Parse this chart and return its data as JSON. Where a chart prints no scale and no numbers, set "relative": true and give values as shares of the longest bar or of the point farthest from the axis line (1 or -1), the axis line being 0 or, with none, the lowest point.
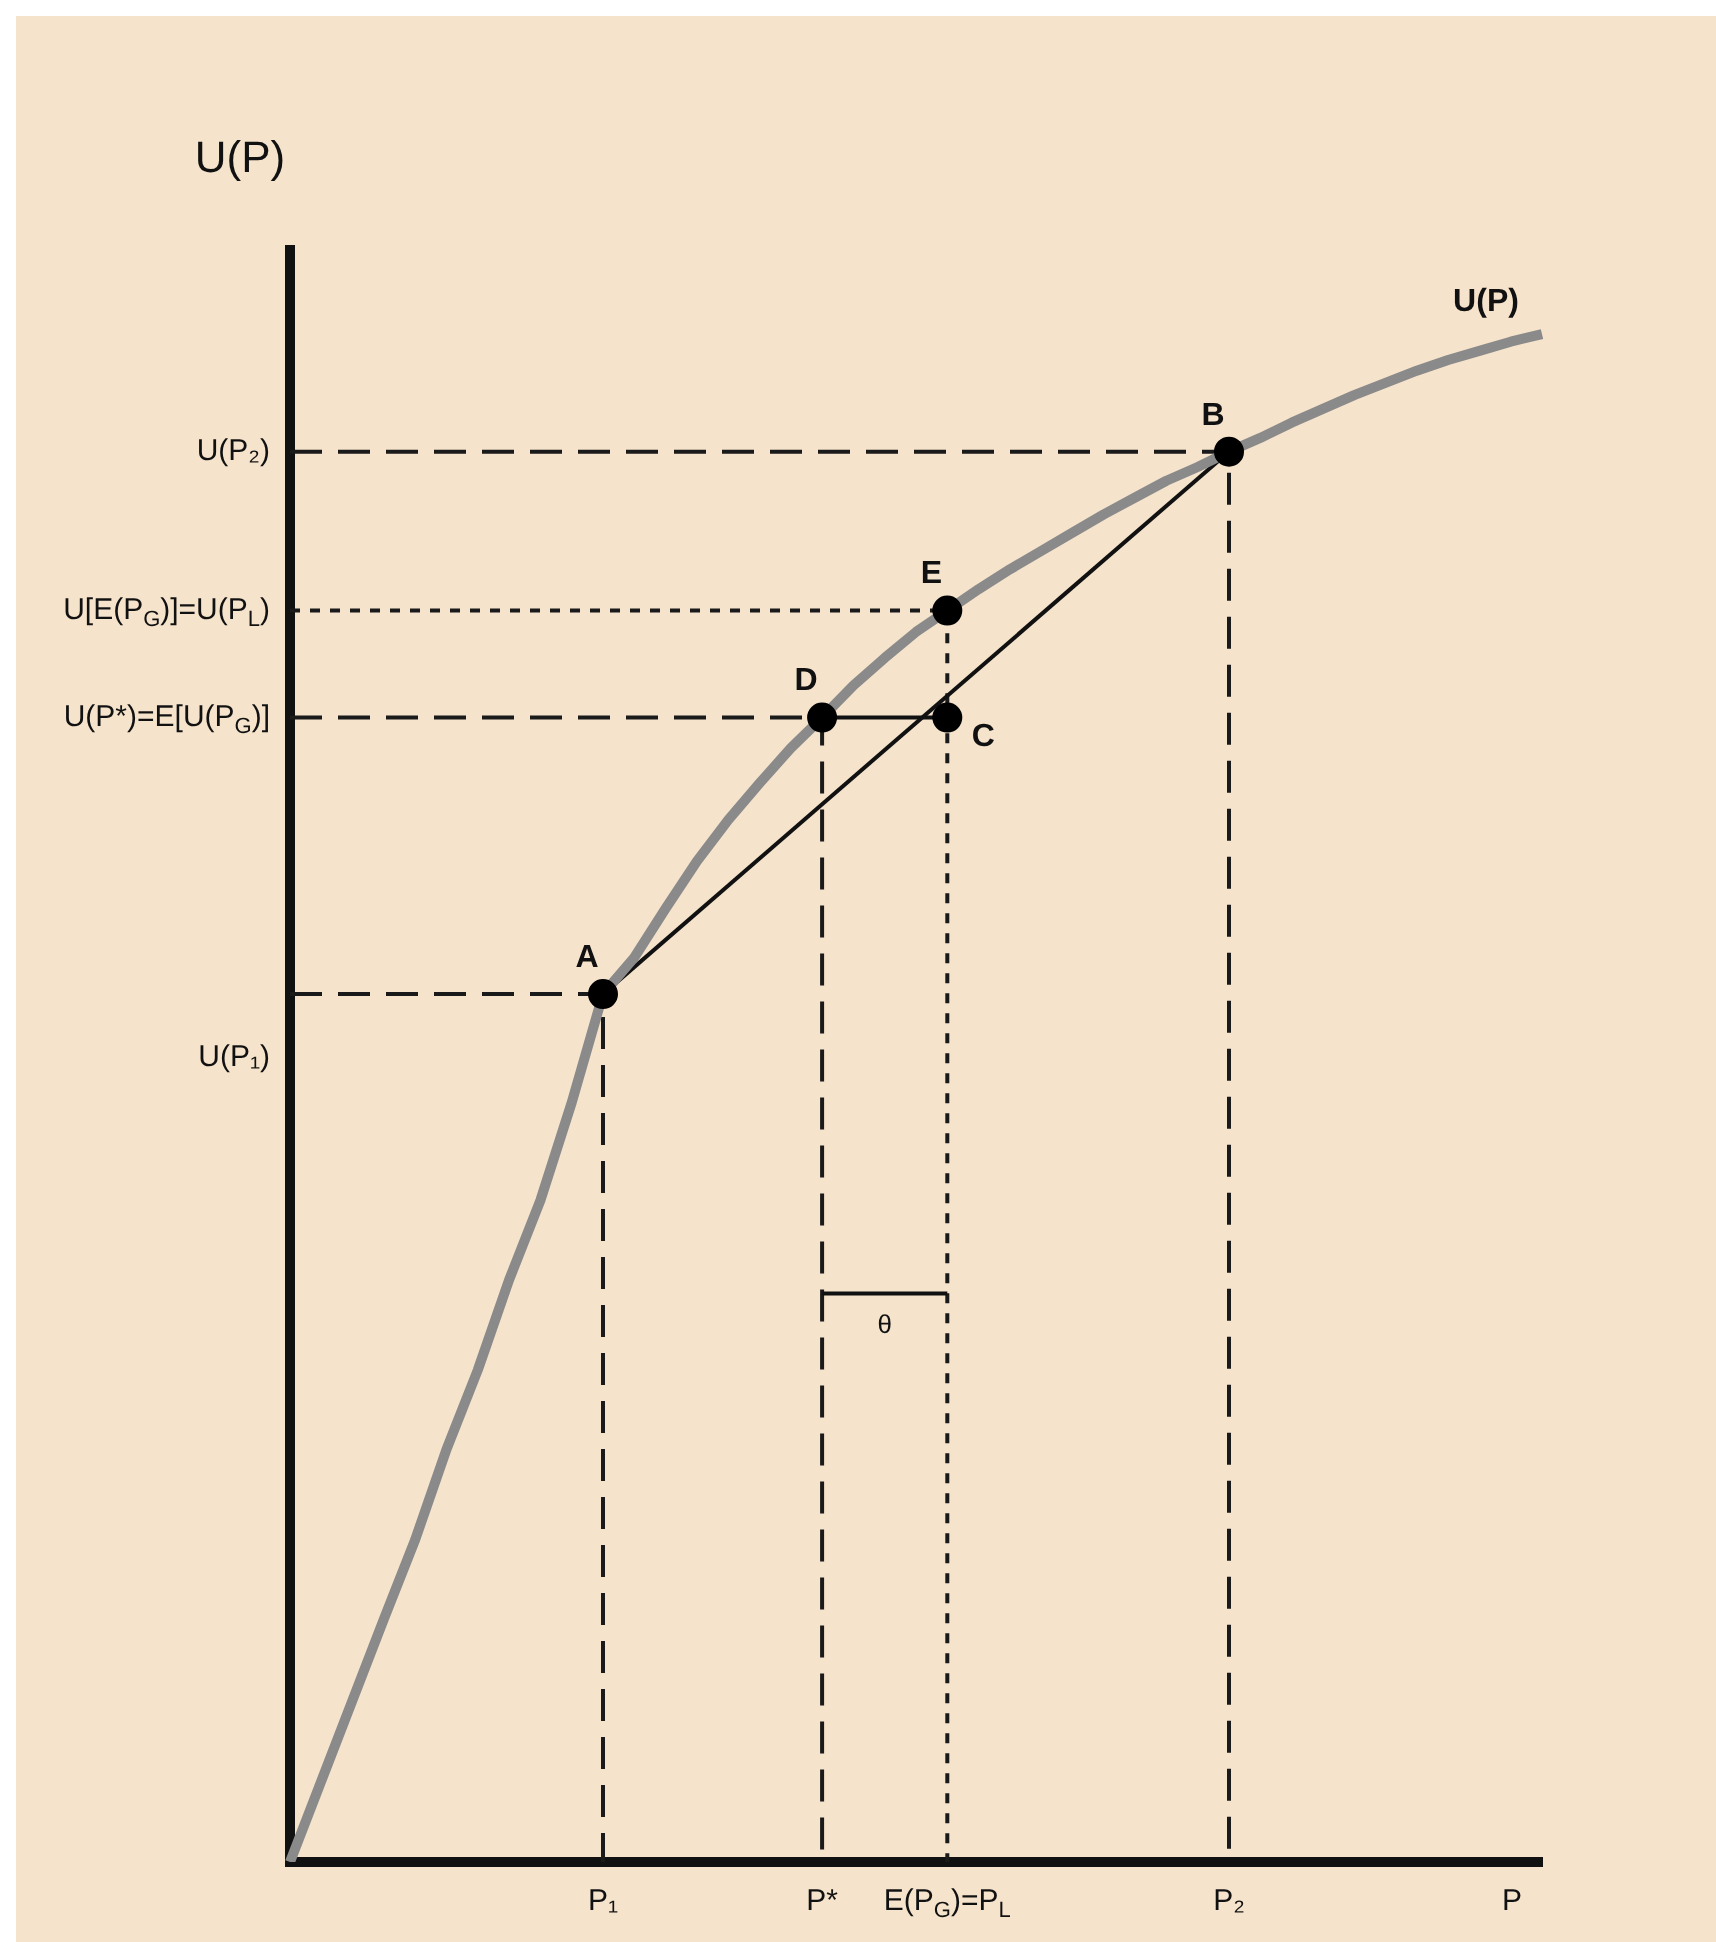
{
  "chart_data": {
    "type": "line",
    "relative": true,
    "xlabel": "P",
    "ylabel": "U(P)",
    "categories": [
      null,
      null,
      null,
      null,
      null,
      null,
      null,
      null,
      null,
      null,
      "P₁",
      null,
      null,
      null,
      null,
      null,
      null,
      "P*",
      null,
      null,
      null,
      "E(P$_{G}$)=P$_{L}$",
      null,
      null,
      null,
      null,
      null,
      null,
      null,
      null,
      "P₂",
      null,
      null,
      null,
      null,
      null,
      null,
      null,
      null,
      null,
      null
    ],
    "series": [
      {
        "type": "line",
        "name": "U(P)",
        "color": "#8a8a8a",
        "marker": "none",
        "line_style": "solid",
        "values": [
          0,
          0.053,
          0.106,
          0.159,
          0.211,
          0.27,
          0.322,
          0.381,
          0.433,
          0.497,
          0.568,
          0.592,
          0.624,
          0.655,
          0.682,
          0.706,
          0.729,
          0.749,
          0.77,
          0.788,
          0.805,
          0.819,
          0.833,
          0.846,
          0.858,
          0.87,
          0.882,
          0.893,
          0.904,
          0.913,
          0.923,
          0.932,
          0.942,
          0.951,
          0.96,
          0.968,
          0.976,
          0.983,
          0.989,
          0.995,
          1
        ]
      },
      {
        "type": "line",
        "color": "#111111",
        "marker": "none",
        "line_style": "solid",
        "values": [
          null,
          null,
          null,
          null,
          null,
          null,
          null,
          null,
          null,
          null,
          0.568,
          null,
          null,
          null,
          null,
          null,
          null,
          null,
          null,
          null,
          null,
          null,
          null,
          null,
          null,
          null,
          null,
          null,
          null,
          null,
          0.923,
          null,
          null,
          null,
          null,
          null,
          null,
          null,
          null,
          null,
          null
        ]
      },
      {
        "type": "line",
        "color": "#111111",
        "marker": "none",
        "line_style": "solid",
        "values": [
          null,
          null,
          null,
          null,
          null,
          null,
          null,
          null,
          null,
          null,
          null,
          null,
          null,
          null,
          null,
          null,
          null,
          0.749,
          null,
          null,
          null,
          0.749,
          null,
          null,
          null,
          null,
          null,
          null,
          null,
          null,
          null,
          null,
          null,
          null,
          null,
          null,
          null,
          null,
          null,
          null,
          null
        ]
      },
      {
        "type": "line",
        "name": "θ",
        "color": "#111111",
        "marker": "none",
        "line_style": "solid",
        "values": [
          null,
          null,
          null,
          null,
          null,
          null,
          null,
          null,
          null,
          null,
          null,
          null,
          null,
          null,
          null,
          null,
          null,
          0.372,
          null,
          null,
          null,
          0.372,
          null,
          null,
          null,
          null,
          null,
          null,
          null,
          null,
          null,
          null,
          null,
          null,
          null,
          null,
          null,
          null,
          null,
          null,
          null
        ]
      },
      {
        "type": "scatter",
        "color": "#000000",
        "marker": "circle",
        "line_style": "dashed",
        "values": [
          null,
          null,
          null,
          null,
          null,
          null,
          null,
          null,
          null,
          null,
          0.568,
          null,
          null,
          null,
          null,
          null,
          null,
          0.749,
          null,
          null,
          null,
          null,
          null,
          null,
          null,
          null,
          null,
          null,
          null,
          null,
          0.923,
          null,
          null,
          null,
          null,
          null,
          null,
          null,
          null,
          null,
          null
        ]
      },
      {
        "type": "scatter",
        "color": "#000000",
        "marker": "circle",
        "line_style": "dotted",
        "values": [
          null,
          null,
          null,
          null,
          null,
          null,
          null,
          null,
          null,
          null,
          null,
          null,
          null,
          null,
          null,
          null,
          null,
          null,
          null,
          null,
          null,
          0.819,
          null,
          null,
          null,
          null,
          null,
          null,
          null,
          null,
          null,
          null,
          null,
          null,
          null,
          null,
          null,
          null,
          null,
          null,
          null
        ]
      },
      {
        "type": "scatter",
        "color": "#000000",
        "marker": "circle",
        "values": [
          null,
          null,
          null,
          null,
          null,
          null,
          null,
          null,
          null,
          null,
          null,
          null,
          null,
          null,
          null,
          null,
          null,
          null,
          null,
          null,
          null,
          0.749,
          null,
          null,
          null,
          null,
          null,
          null,
          null,
          null,
          null,
          null,
          null,
          null,
          null,
          null,
          null,
          null,
          null,
          null,
          null
        ]
      }
    ],
    "annotations": [
      {
        "text": "A",
        "x": "P₁",
        "y": 0.568
      },
      {
        "text": "B",
        "x": "P₂",
        "y": 0.923
      },
      {
        "text": "C",
        "x": "E(P$_{G}$)=P$_{L}$",
        "y": 0.749
      },
      {
        "text": "D",
        "x": "P*",
        "y": 0.749
      },
      {
        "text": "E",
        "x": "E(P$_{G}$)=P$_{L}$",
        "y": 0.819
      },
      "U(P₂)",
      "U[E(P$_{G}$)]=U(P$_{L}$)",
      "U(P*)=E[U(P$_{G}$)]",
      "U(P₁)"
    ]
  }
}
